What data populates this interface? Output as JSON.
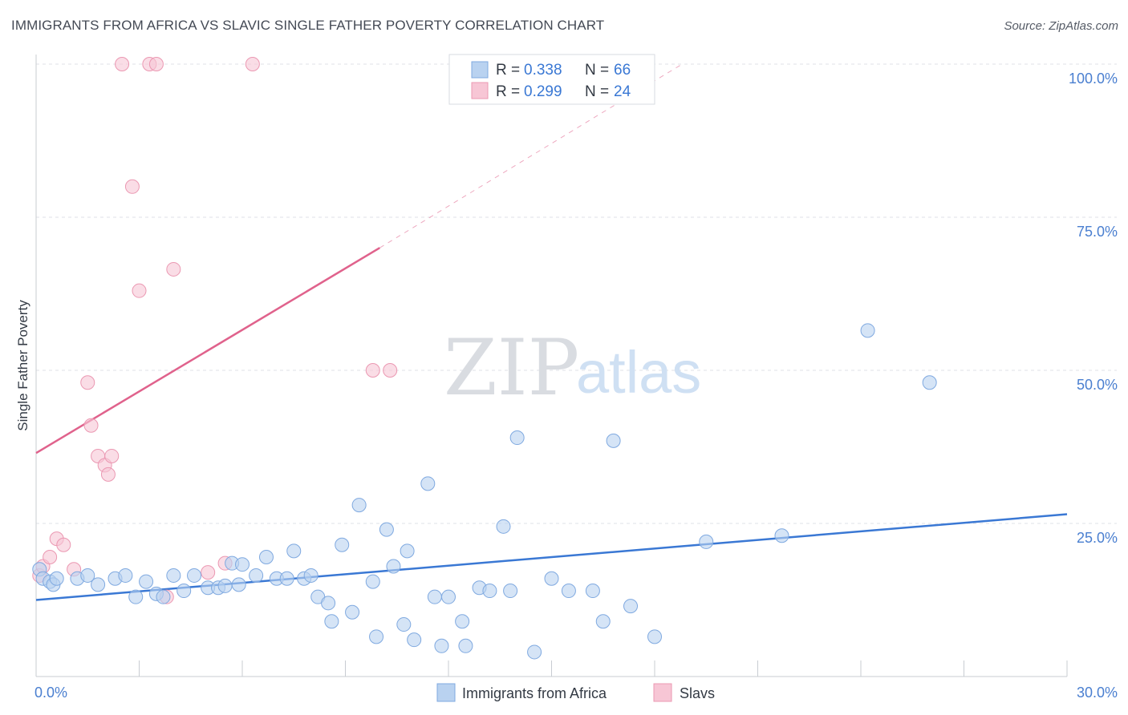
{
  "title": "IMMIGRANTS FROM AFRICA VS SLAVIC SINGLE FATHER POVERTY CORRELATION CHART",
  "source": "Source: ZipAtlas.com",
  "watermark": {
    "zip": "ZIP",
    "atlas": "atlas"
  },
  "colors": {
    "blue_fill": "#b9d2f0",
    "blue_stroke": "#7fa9e0",
    "blue_line": "#3a78d4",
    "pink_fill": "#f7c6d5",
    "pink_stroke": "#eb98b2",
    "pink_line": "#e0628c",
    "grid": "#dfe2e7",
    "tick_text": "#4a7fd0"
  },
  "chart_data": {
    "type": "scatter",
    "ylabel": "Single Father Poverty",
    "xlim": [
      0,
      30
    ],
    "ylim": [
      0,
      100
    ],
    "x_tick_labels": {
      "min": "0.0%",
      "max": "30.0%"
    },
    "y_ticks": [
      {
        "value": 25,
        "label": "25.0%"
      },
      {
        "value": 50,
        "label": "50.0%"
      },
      {
        "value": 75,
        "label": "75.0%"
      },
      {
        "value": 100,
        "label": "100.0%"
      }
    ],
    "grid": true,
    "legend_placement": "top-center",
    "series": [
      {
        "name": "Immigrants from Africa",
        "color": "blue",
        "R": "0.338",
        "N": "66",
        "trend": {
          "x0": 0,
          "y0": 12.5,
          "x1": 30,
          "y1": 26.5
        },
        "points": [
          [
            0.1,
            17.5
          ],
          [
            0.2,
            16.0
          ],
          [
            0.4,
            15.5
          ],
          [
            0.5,
            15.0
          ],
          [
            0.6,
            16.0
          ],
          [
            1.2,
            16.0
          ],
          [
            1.5,
            16.5
          ],
          [
            1.8,
            15.0
          ],
          [
            2.3,
            16.0
          ],
          [
            2.6,
            16.5
          ],
          [
            2.9,
            13.0
          ],
          [
            3.2,
            15.5
          ],
          [
            3.5,
            13.5
          ],
          [
            3.7,
            13.0
          ],
          [
            4.0,
            16.5
          ],
          [
            4.3,
            14.0
          ],
          [
            4.6,
            16.5
          ],
          [
            5.0,
            14.5
          ],
          [
            5.3,
            14.5
          ],
          [
            5.5,
            14.8
          ],
          [
            5.7,
            18.5
          ],
          [
            5.9,
            15.0
          ],
          [
            6.0,
            18.3
          ],
          [
            6.4,
            16.5
          ],
          [
            6.7,
            19.5
          ],
          [
            7.0,
            16.0
          ],
          [
            7.3,
            16.0
          ],
          [
            7.5,
            20.5
          ],
          [
            7.8,
            16.0
          ],
          [
            8.0,
            16.5
          ],
          [
            8.2,
            13.0
          ],
          [
            8.5,
            12.0
          ],
          [
            8.6,
            9.0
          ],
          [
            8.9,
            21.5
          ],
          [
            9.2,
            10.5
          ],
          [
            9.4,
            28.0
          ],
          [
            9.8,
            15.5
          ],
          [
            9.9,
            6.5
          ],
          [
            10.2,
            24.0
          ],
          [
            10.4,
            18.0
          ],
          [
            10.7,
            8.5
          ],
          [
            10.8,
            20.5
          ],
          [
            11.0,
            6.0
          ],
          [
            11.4,
            31.5
          ],
          [
            11.6,
            13.0
          ],
          [
            11.8,
            5.0
          ],
          [
            12.0,
            13.0
          ],
          [
            12.4,
            9.0
          ],
          [
            12.5,
            5.0
          ],
          [
            12.9,
            14.5
          ],
          [
            13.2,
            14.0
          ],
          [
            13.6,
            24.5
          ],
          [
            13.8,
            14.0
          ],
          [
            14.0,
            39.0
          ],
          [
            14.5,
            4.0
          ],
          [
            15.0,
            16.0
          ],
          [
            15.5,
            14.0
          ],
          [
            16.2,
            14.0
          ],
          [
            16.5,
            9.0
          ],
          [
            16.8,
            38.5
          ],
          [
            17.3,
            11.5
          ],
          [
            18.0,
            6.5
          ],
          [
            19.5,
            22.0
          ],
          [
            21.7,
            23.0
          ],
          [
            24.2,
            56.5
          ],
          [
            26.0,
            48.0
          ]
        ]
      },
      {
        "name": "Slavs",
        "color": "pink",
        "R": "0.299",
        "N": "24",
        "trend": {
          "x0": 0,
          "y0": 36.5,
          "x1": 10,
          "y1": 70.0,
          "dash_x1": 18.8,
          "dash_y1": 100.0
        },
        "points": [
          [
            0.1,
            16.5
          ],
          [
            0.2,
            18.0
          ],
          [
            0.4,
            19.5
          ],
          [
            0.6,
            22.5
          ],
          [
            0.8,
            21.5
          ],
          [
            1.1,
            17.5
          ],
          [
            1.5,
            48.0
          ],
          [
            1.6,
            41.0
          ],
          [
            1.8,
            36.0
          ],
          [
            2.0,
            34.5
          ],
          [
            2.1,
            33.0
          ],
          [
            2.2,
            36.0
          ],
          [
            2.5,
            100.0
          ],
          [
            2.8,
            80.0
          ],
          [
            3.0,
            63.0
          ],
          [
            3.3,
            100.0
          ],
          [
            3.5,
            100.0
          ],
          [
            3.8,
            13.0
          ],
          [
            4.0,
            66.5
          ],
          [
            5.0,
            17.0
          ],
          [
            5.5,
            18.5
          ],
          [
            6.3,
            100.0
          ],
          [
            9.8,
            50.0
          ],
          [
            10.3,
            50.0
          ]
        ]
      }
    ]
  },
  "legend": {
    "r_label": "R =",
    "n_label": "N ="
  }
}
